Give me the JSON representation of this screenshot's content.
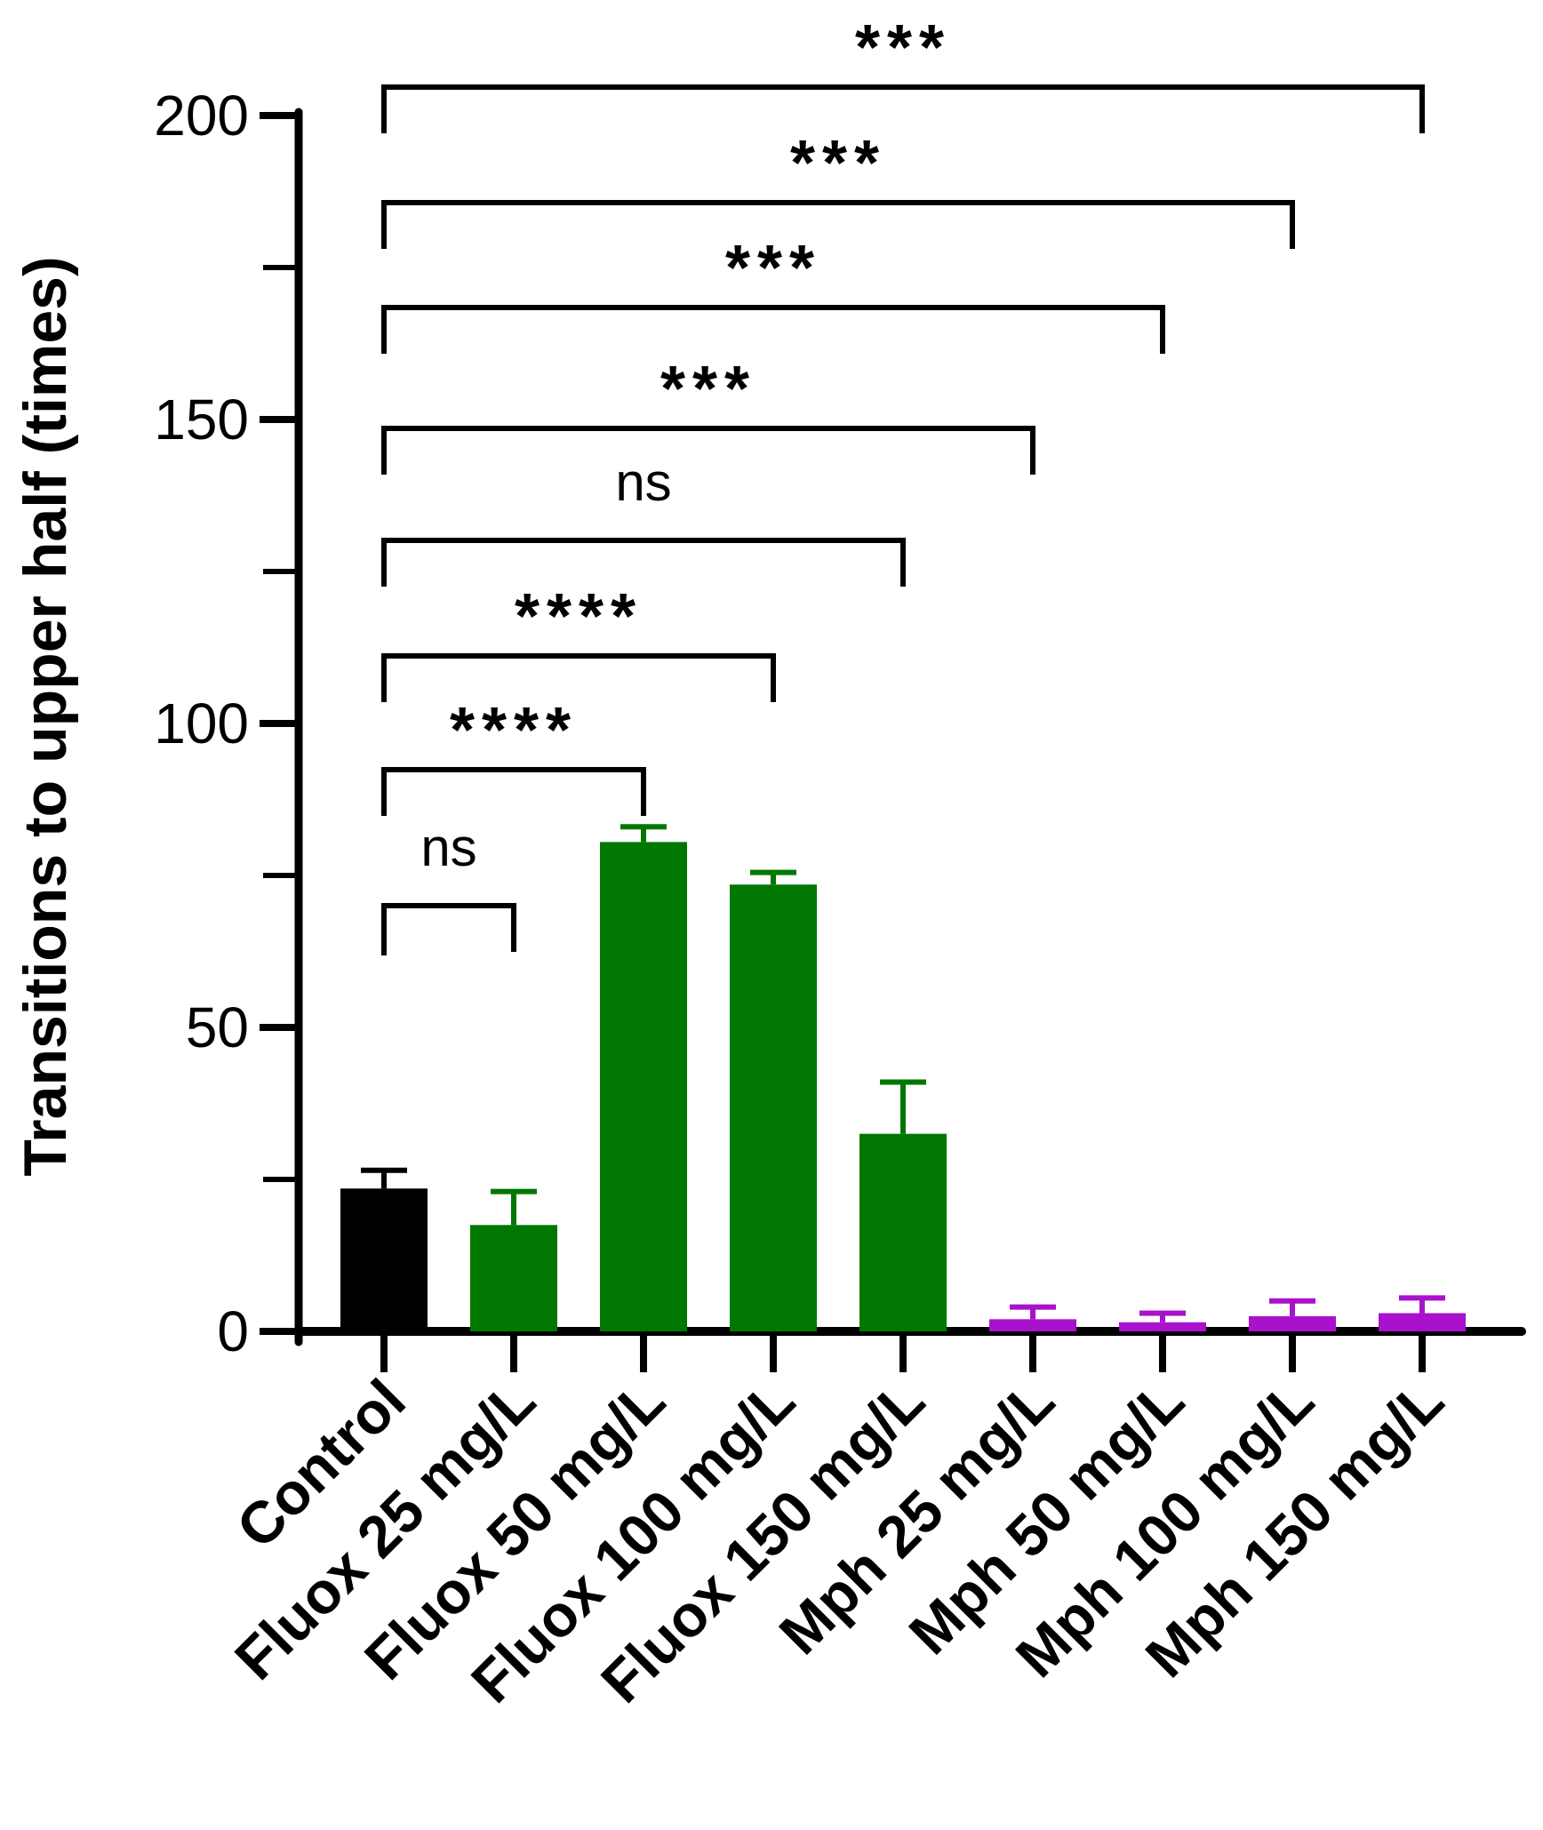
{
  "chart_data": {
    "type": "bar",
    "title": "",
    "xlabel": "",
    "ylabel": "Transitions to upper half (times)",
    "ylim": [
      0,
      200
    ],
    "yticks_major": [
      0,
      50,
      100,
      150,
      200
    ],
    "yticks_minor": [
      25,
      75,
      125,
      175
    ],
    "grid": false,
    "categories": [
      "Control",
      "Fluox 25 mg/L",
      "Fluox 50 mg/L",
      "Fluox 100 mg/L",
      "Fluox 150 mg/L",
      "Mph 25 mg/L",
      "Mph 50 mg/L",
      "Mph 100 mg/L",
      "Mph 150 mg/L"
    ],
    "values": [
      23.5,
      17.5,
      80.5,
      73.5,
      32.5,
      2.0,
      1.5,
      2.5,
      3.0
    ],
    "errors": [
      3.0,
      5.5,
      2.5,
      2.0,
      8.5,
      2.0,
      1.5,
      2.5,
      2.5
    ],
    "colors": [
      "#000000",
      "#007700",
      "#007700",
      "#007700",
      "#007700",
      "#aa11cc",
      "#aa11cc",
      "#aa11cc",
      "#aa11cc"
    ],
    "comparisons": [
      {
        "from": 0,
        "to": 1,
        "label": "ns"
      },
      {
        "from": 0,
        "to": 2,
        "label": "****"
      },
      {
        "from": 0,
        "to": 3,
        "label": "****"
      },
      {
        "from": 0,
        "to": 4,
        "label": "ns"
      },
      {
        "from": 0,
        "to": 5,
        "label": "***"
      },
      {
        "from": 0,
        "to": 6,
        "label": "***"
      },
      {
        "from": 0,
        "to": 7,
        "label": "***"
      },
      {
        "from": 0,
        "to": 8,
        "label": "***"
      }
    ]
  }
}
